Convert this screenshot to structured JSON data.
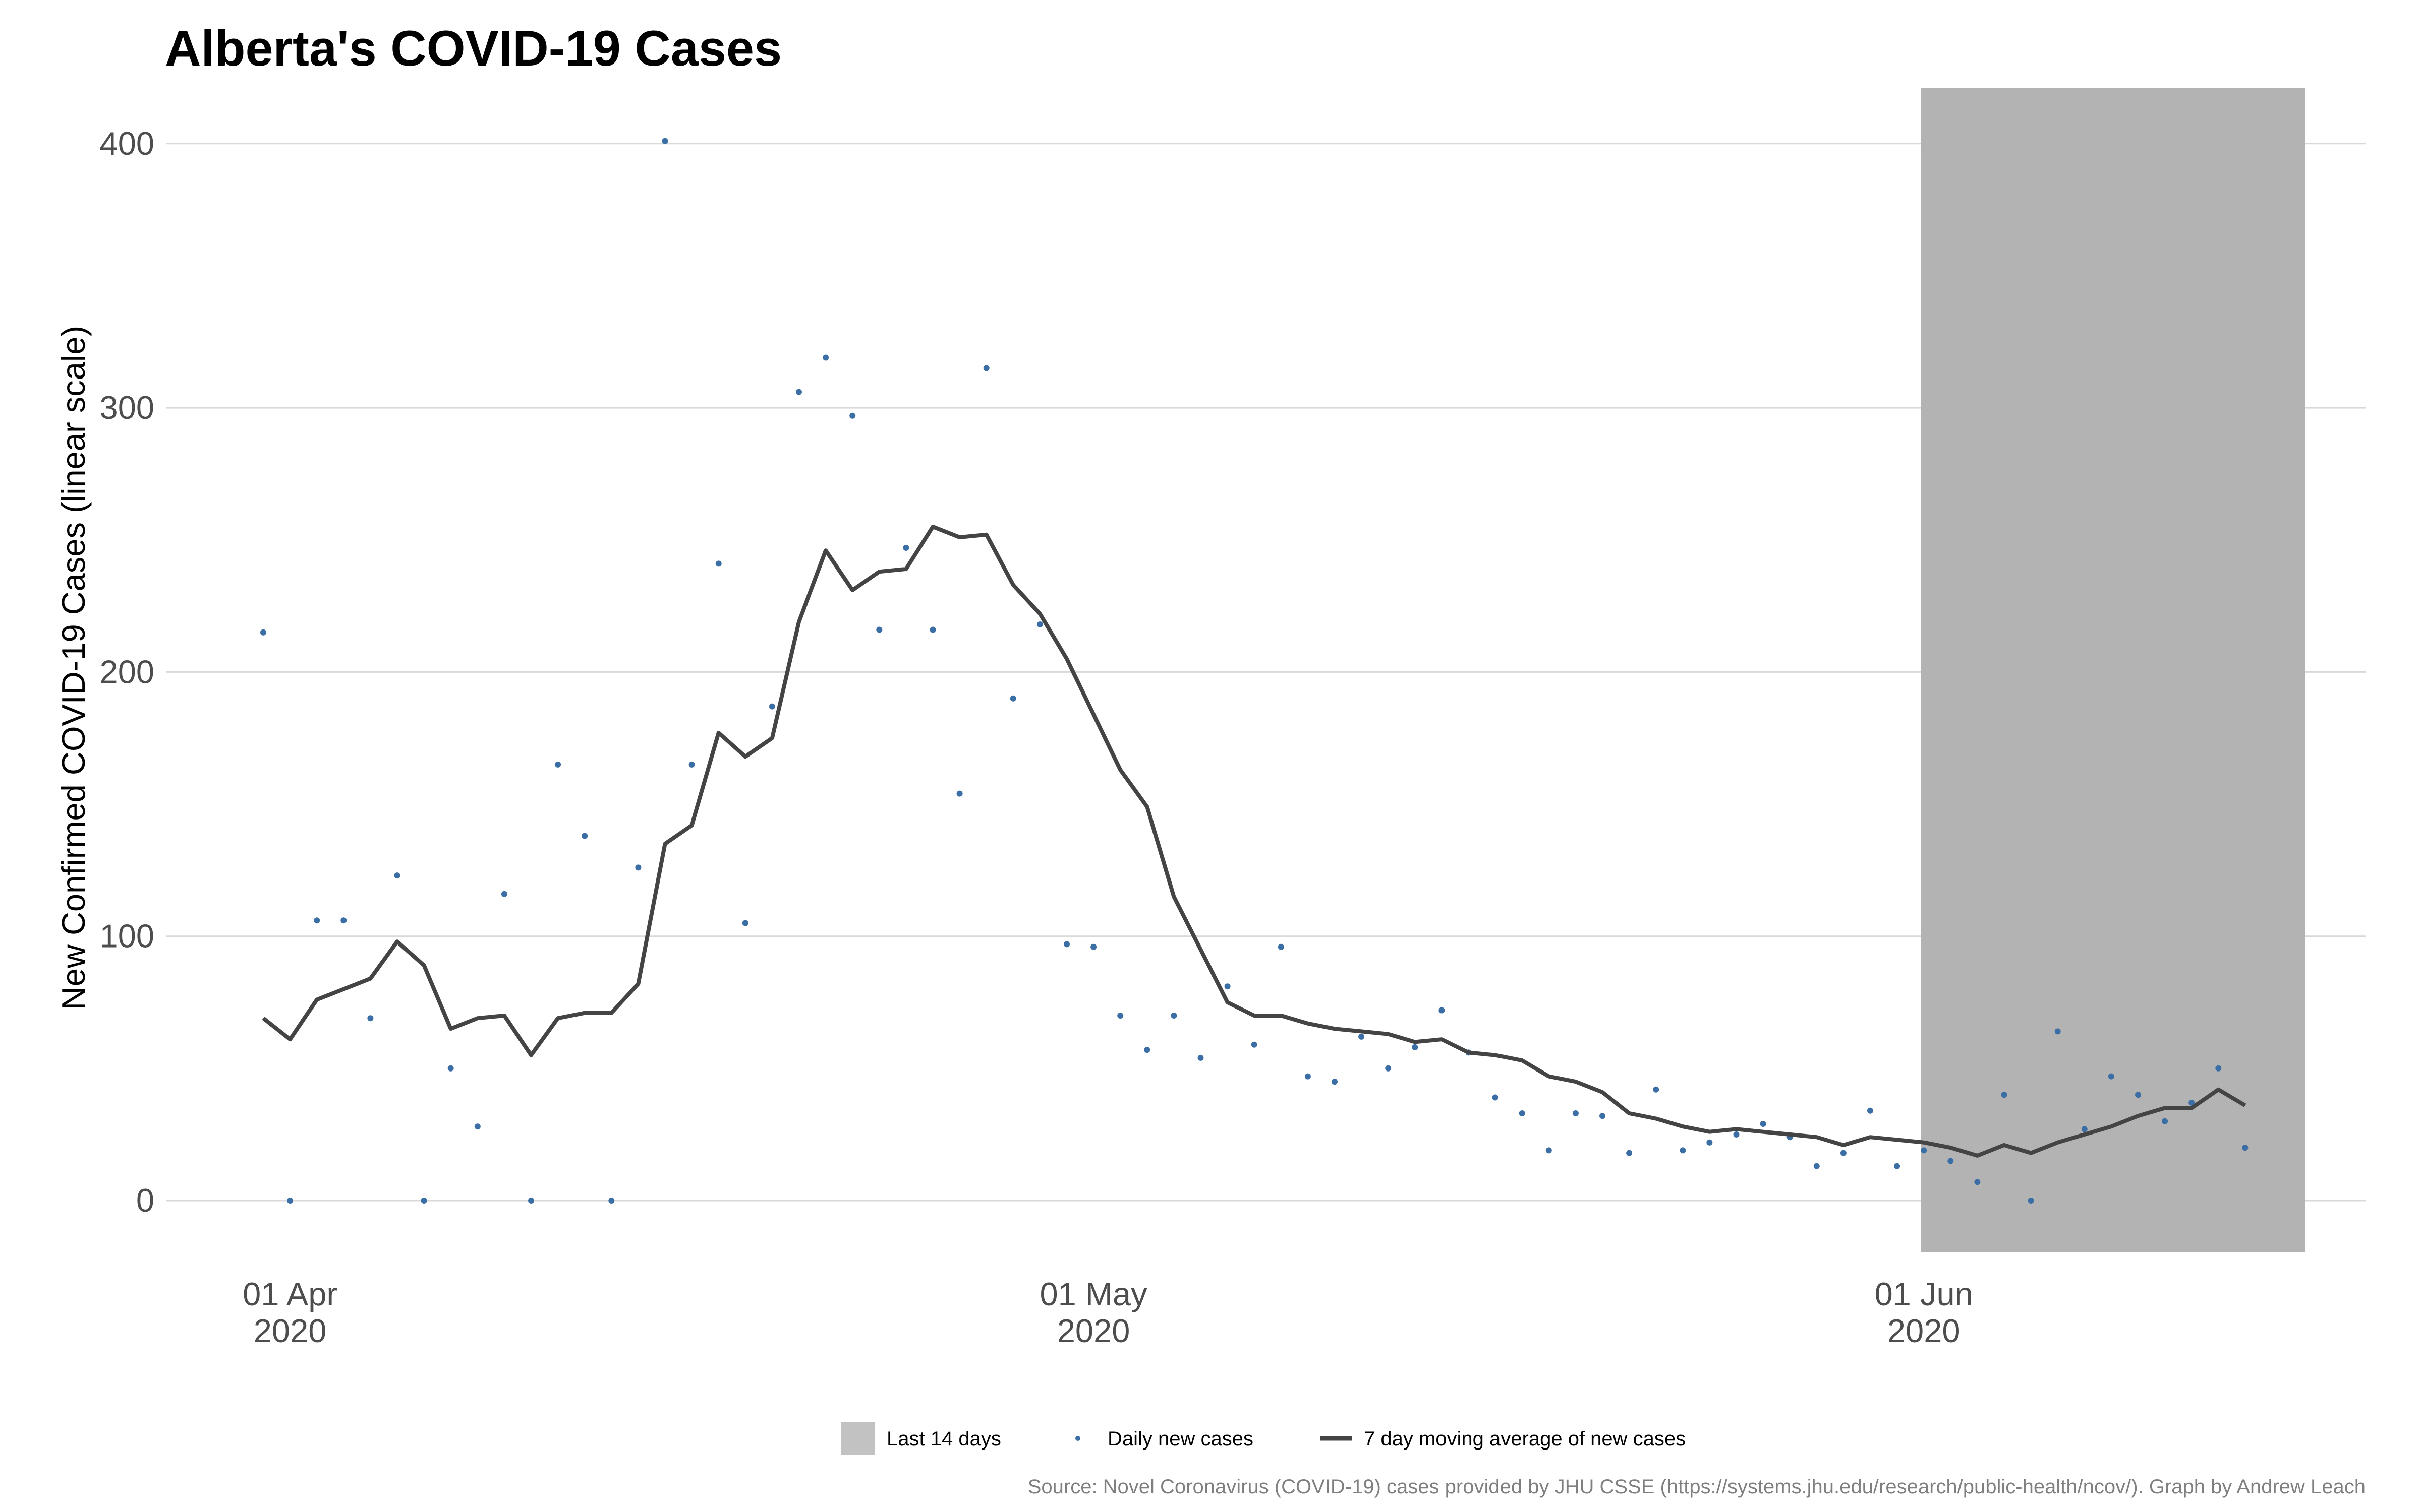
{
  "chart_data": {
    "type": "line",
    "title": "Alberta's COVID-19 Cases",
    "ylabel": "New Confirmed COVID-19 Cases (linear scale)",
    "xlabel": "",
    "x_start": "2020-03-31",
    "ylim": [
      -20,
      420
    ],
    "yticks": [
      0,
      100,
      200,
      300,
      400
    ],
    "xticks": [
      {
        "date": "2020-04-01",
        "line1": "01 Apr",
        "line2": "2020"
      },
      {
        "date": "2020-05-01",
        "line1": "01 May",
        "line2": "2020"
      },
      {
        "date": "2020-06-01",
        "line1": "01 Jun",
        "line2": "2020"
      }
    ],
    "grid": "horizontal",
    "highlight_band": {
      "label": "Last 14 days",
      "from": "2020-06-01",
      "to": "2020-06-15",
      "color": "#b3b3b3"
    },
    "series": [
      {
        "name": "Daily new cases",
        "kind": "points",
        "color": "#3a6ea5",
        "values": [
          215,
          0,
          106,
          106,
          69,
          123,
          0,
          50,
          28,
          116,
          0,
          165,
          138,
          0,
          126,
          401,
          165,
          241,
          105,
          187,
          306,
          319,
          297,
          216,
          247,
          216,
          154,
          315,
          190,
          218,
          97,
          96,
          70,
          57,
          70,
          54,
          81,
          59,
          96,
          47,
          45,
          62,
          50,
          58,
          72,
          56,
          39,
          33,
          19,
          33,
          32,
          18,
          42,
          19,
          22,
          25,
          29,
          24,
          13,
          18,
          34,
          13,
          19,
          15,
          7,
          40,
          0,
          64,
          27,
          47,
          40,
          30,
          37,
          50,
          20
        ]
      },
      {
        "name": "7 day moving average of new cases",
        "kind": "line",
        "color": "#444444",
        "values": [
          69,
          61,
          76,
          80,
          84,
          98,
          89,
          65,
          69,
          70,
          55,
          69,
          71,
          71,
          82,
          135,
          142,
          177,
          168,
          175,
          219,
          246,
          231,
          238,
          239,
          255,
          251,
          252,
          233,
          222,
          205,
          184,
          163,
          149,
          115,
          95,
          75,
          70,
          70,
          67,
          65,
          64,
          63,
          60,
          61,
          56,
          55,
          53,
          47,
          45,
          41,
          33,
          31,
          28,
          26,
          27,
          26,
          25,
          24,
          21,
          24,
          23,
          22,
          20,
          17,
          21,
          18,
          22,
          25,
          28,
          32,
          35,
          35,
          42,
          36
        ]
      }
    ],
    "legend": {
      "position": "bottom",
      "items": [
        "Last 14 days",
        "Daily new cases",
        "7 day moving average of new cases"
      ]
    },
    "caption": "Source: Novel Coronavirus (COVID-19) cases provided by JHU CSSE (https://systems.jhu.edu/research/public-health/ncov/). Graph by Andrew Leach"
  }
}
